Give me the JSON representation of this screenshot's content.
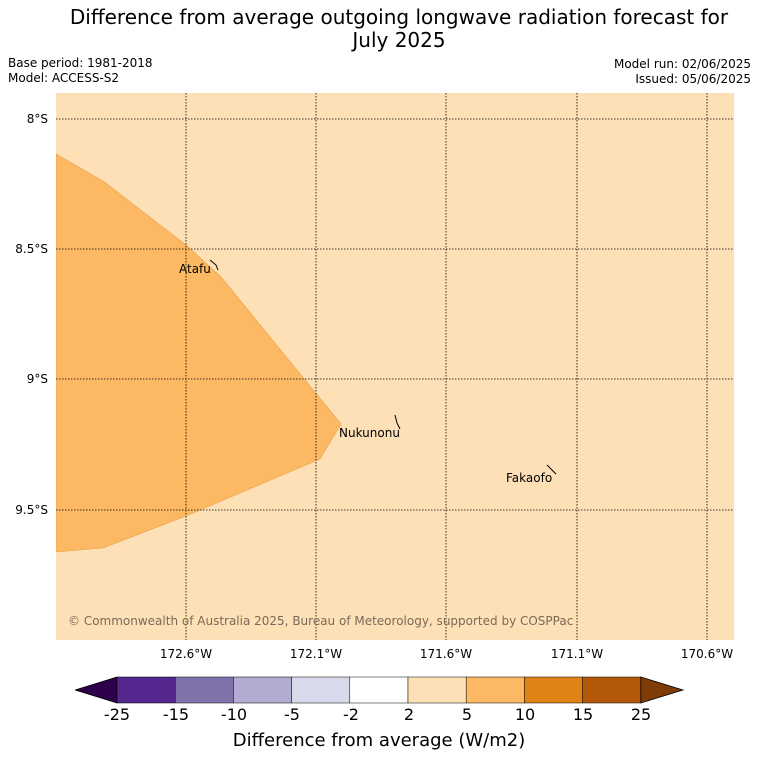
{
  "title_line1": "Difference from average outgoing longwave radiation forecast for",
  "title_line2": "July 2025",
  "base_period": "Base period: 1981-2018",
  "model": "Model: ACCESS-S2",
  "model_run": "Model run: 02/06/2025",
  "issued": "Issued: 05/06/2025",
  "lat_labels": [
    "8°S",
    "8.5°S",
    "9°S",
    "9.5°S"
  ],
  "lon_labels": [
    "172.6°W",
    "172.1°W",
    "171.6°W",
    "171.1°W",
    "170.6°W"
  ],
  "islands": {
    "atafu": "Atafu",
    "nukunonu": "Nukunonu",
    "fakaofo": "Fakaofo"
  },
  "copyright": "© Commonwealth of Australia 2025, Bureau of Meteorology, supported by COSPPac",
  "colorbar": {
    "title": "Difference from average (W/m2)",
    "ticks": [
      "-25",
      "-15",
      "-10",
      "-5",
      "-2",
      "2",
      "5",
      "10",
      "15",
      "25"
    ],
    "colors": [
      "#54278f",
      "#8073ac",
      "#b2abd2",
      "#d8daeb",
      "#ffffff",
      "#fee0b6",
      "#fdb863",
      "#e08214",
      "#b35806"
    ],
    "under_color": "#2d004b",
    "over_color": "#7f3b08"
  },
  "map_colors": {
    "background": "#fee0b6",
    "region": "#fdb863"
  }
}
